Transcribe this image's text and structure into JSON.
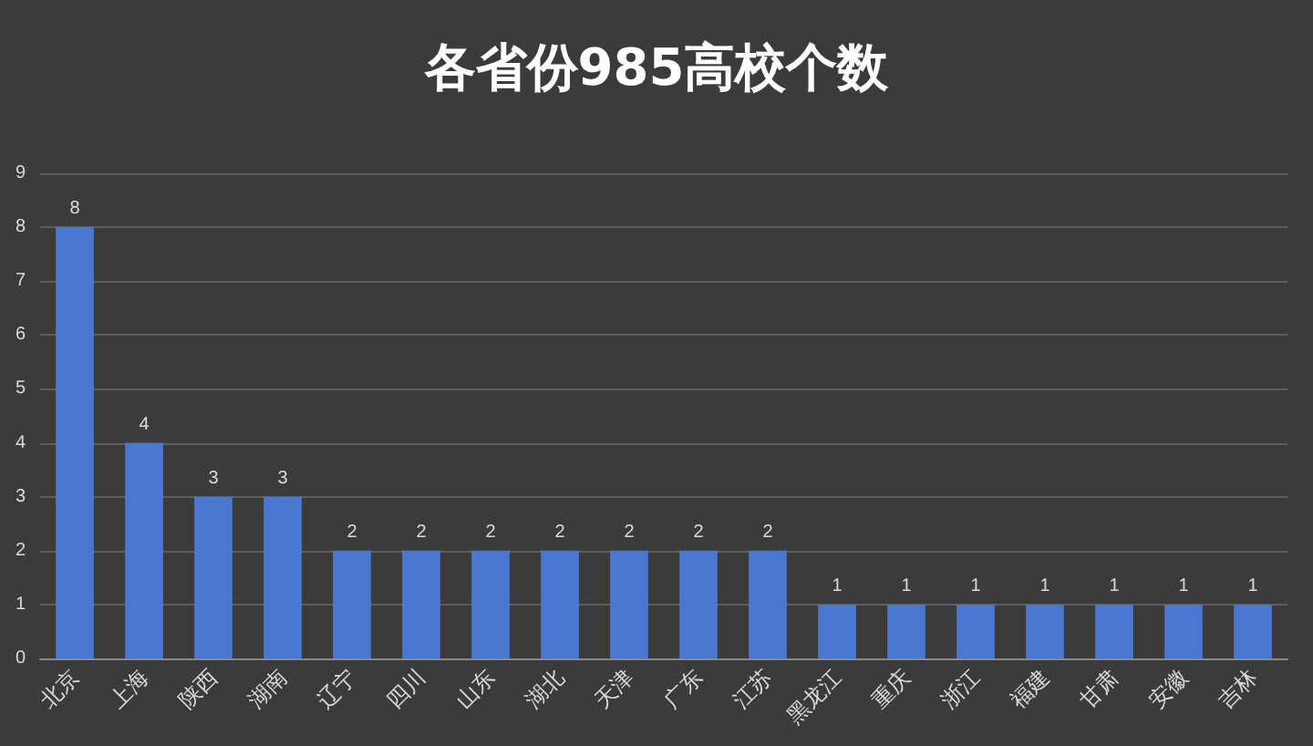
{
  "chart_data": {
    "type": "bar",
    "title": "各省份985高校个数",
    "categories": [
      "北京",
      "上海",
      "陕西",
      "湖南",
      "辽宁",
      "四川",
      "山东",
      "湖北",
      "天津",
      "广东",
      "江苏",
      "黑龙江",
      "重庆",
      "浙江",
      "福建",
      "甘肃",
      "安徽",
      "吉林"
    ],
    "values": [
      8,
      4,
      3,
      3,
      2,
      2,
      2,
      2,
      2,
      2,
      2,
      1,
      1,
      1,
      1,
      1,
      1,
      1
    ],
    "color": "#4a78d0",
    "ylim": [
      0,
      9
    ],
    "yticks": [
      0,
      1,
      2,
      3,
      4,
      5,
      6,
      7,
      8,
      9
    ],
    "grid": true,
    "data_labels": true
  }
}
